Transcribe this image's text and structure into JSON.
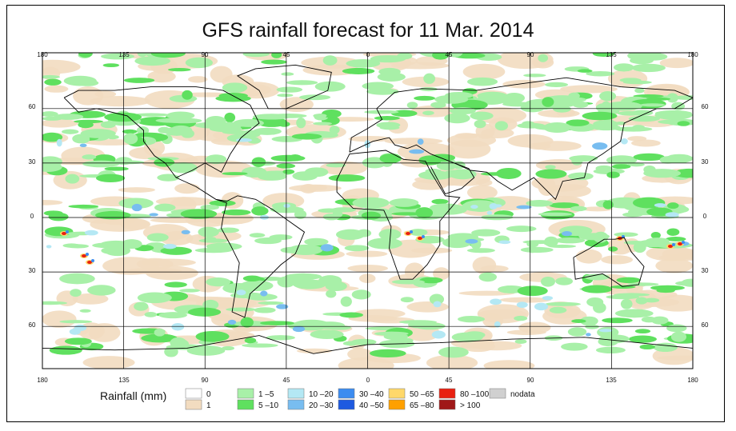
{
  "title": "GFS rainfall forecast for 11 Mar. 2014",
  "axes": {
    "lon_ticks": [
      "180",
      "135",
      "90",
      "45",
      "0",
      "45",
      "90",
      "135",
      "180"
    ],
    "lat_ticks": [
      "60",
      "30",
      "0",
      "30",
      "60"
    ]
  },
  "legend": {
    "title": "Rainfall (mm)",
    "items": [
      {
        "label": "0",
        "color": "#ffffff"
      },
      {
        "label": "1",
        "color": "#f2dcc0"
      },
      {
        "label": "1 –5",
        "color": "#a8f0a8"
      },
      {
        "label": "5 –10",
        "color": "#5fe05f"
      },
      {
        "label": "10 –20",
        "color": "#b4e8f4"
      },
      {
        "label": "20 –30",
        "color": "#78bdf0"
      },
      {
        "label": "30 –40",
        "color": "#3c8cf0"
      },
      {
        "label": "40 –50",
        "color": "#1e5ae0"
      },
      {
        "label": "50 –65",
        "color": "#ffd86a"
      },
      {
        "label": "65 –80",
        "color": "#ffa000"
      },
      {
        "label": "80 –100",
        "color": "#e82010"
      },
      {
        "label": "> 100",
        "color": "#a01818"
      },
      {
        "label": "nodata",
        "color": "#d0d0d0"
      }
    ]
  }
}
